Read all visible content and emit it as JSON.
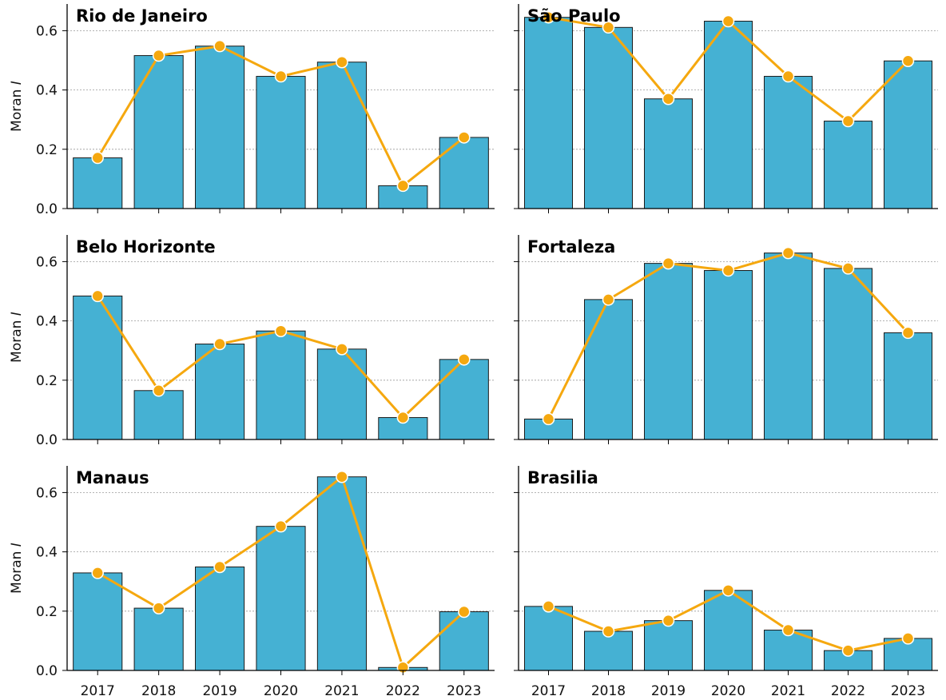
{
  "colors": {
    "bar": "#45b1d3",
    "line": "#f5a80f"
  },
  "chart_data": {
    "type": "bar",
    "layout": "3x2 small multiples, bars with overlaid line markers",
    "ylabel_prefix": "Moran ",
    "ylabel_italic": "I",
    "categories": [
      "2017",
      "2018",
      "2019",
      "2020",
      "2021",
      "2022",
      "2023"
    ],
    "ylim": [
      0,
      0.69
    ],
    "yticks": [
      "0.0",
      "0.2",
      "0.4",
      "0.6"
    ],
    "grid": "horizontal dashed",
    "panels": [
      {
        "title": "Rio de Janeiro",
        "values": [
          0.171,
          0.516,
          0.548,
          0.446,
          0.494,
          0.077,
          0.24
        ]
      },
      {
        "title": "São Paulo",
        "values": [
          0.645,
          0.611,
          0.37,
          0.632,
          0.446,
          0.295,
          0.498
        ]
      },
      {
        "title": "Belo Horizonte",
        "values": [
          0.484,
          0.165,
          0.322,
          0.366,
          0.305,
          0.074,
          0.27
        ]
      },
      {
        "title": "Fortaleza",
        "values": [
          0.069,
          0.472,
          0.594,
          0.57,
          0.629,
          0.577,
          0.36
        ]
      },
      {
        "title": "Manaus",
        "values": [
          0.329,
          0.21,
          0.349,
          0.486,
          0.653,
          0.01,
          0.198
        ]
      },
      {
        "title": "Brasilia",
        "values": [
          0.216,
          0.132,
          0.168,
          0.27,
          0.136,
          0.067,
          0.108
        ]
      }
    ]
  }
}
